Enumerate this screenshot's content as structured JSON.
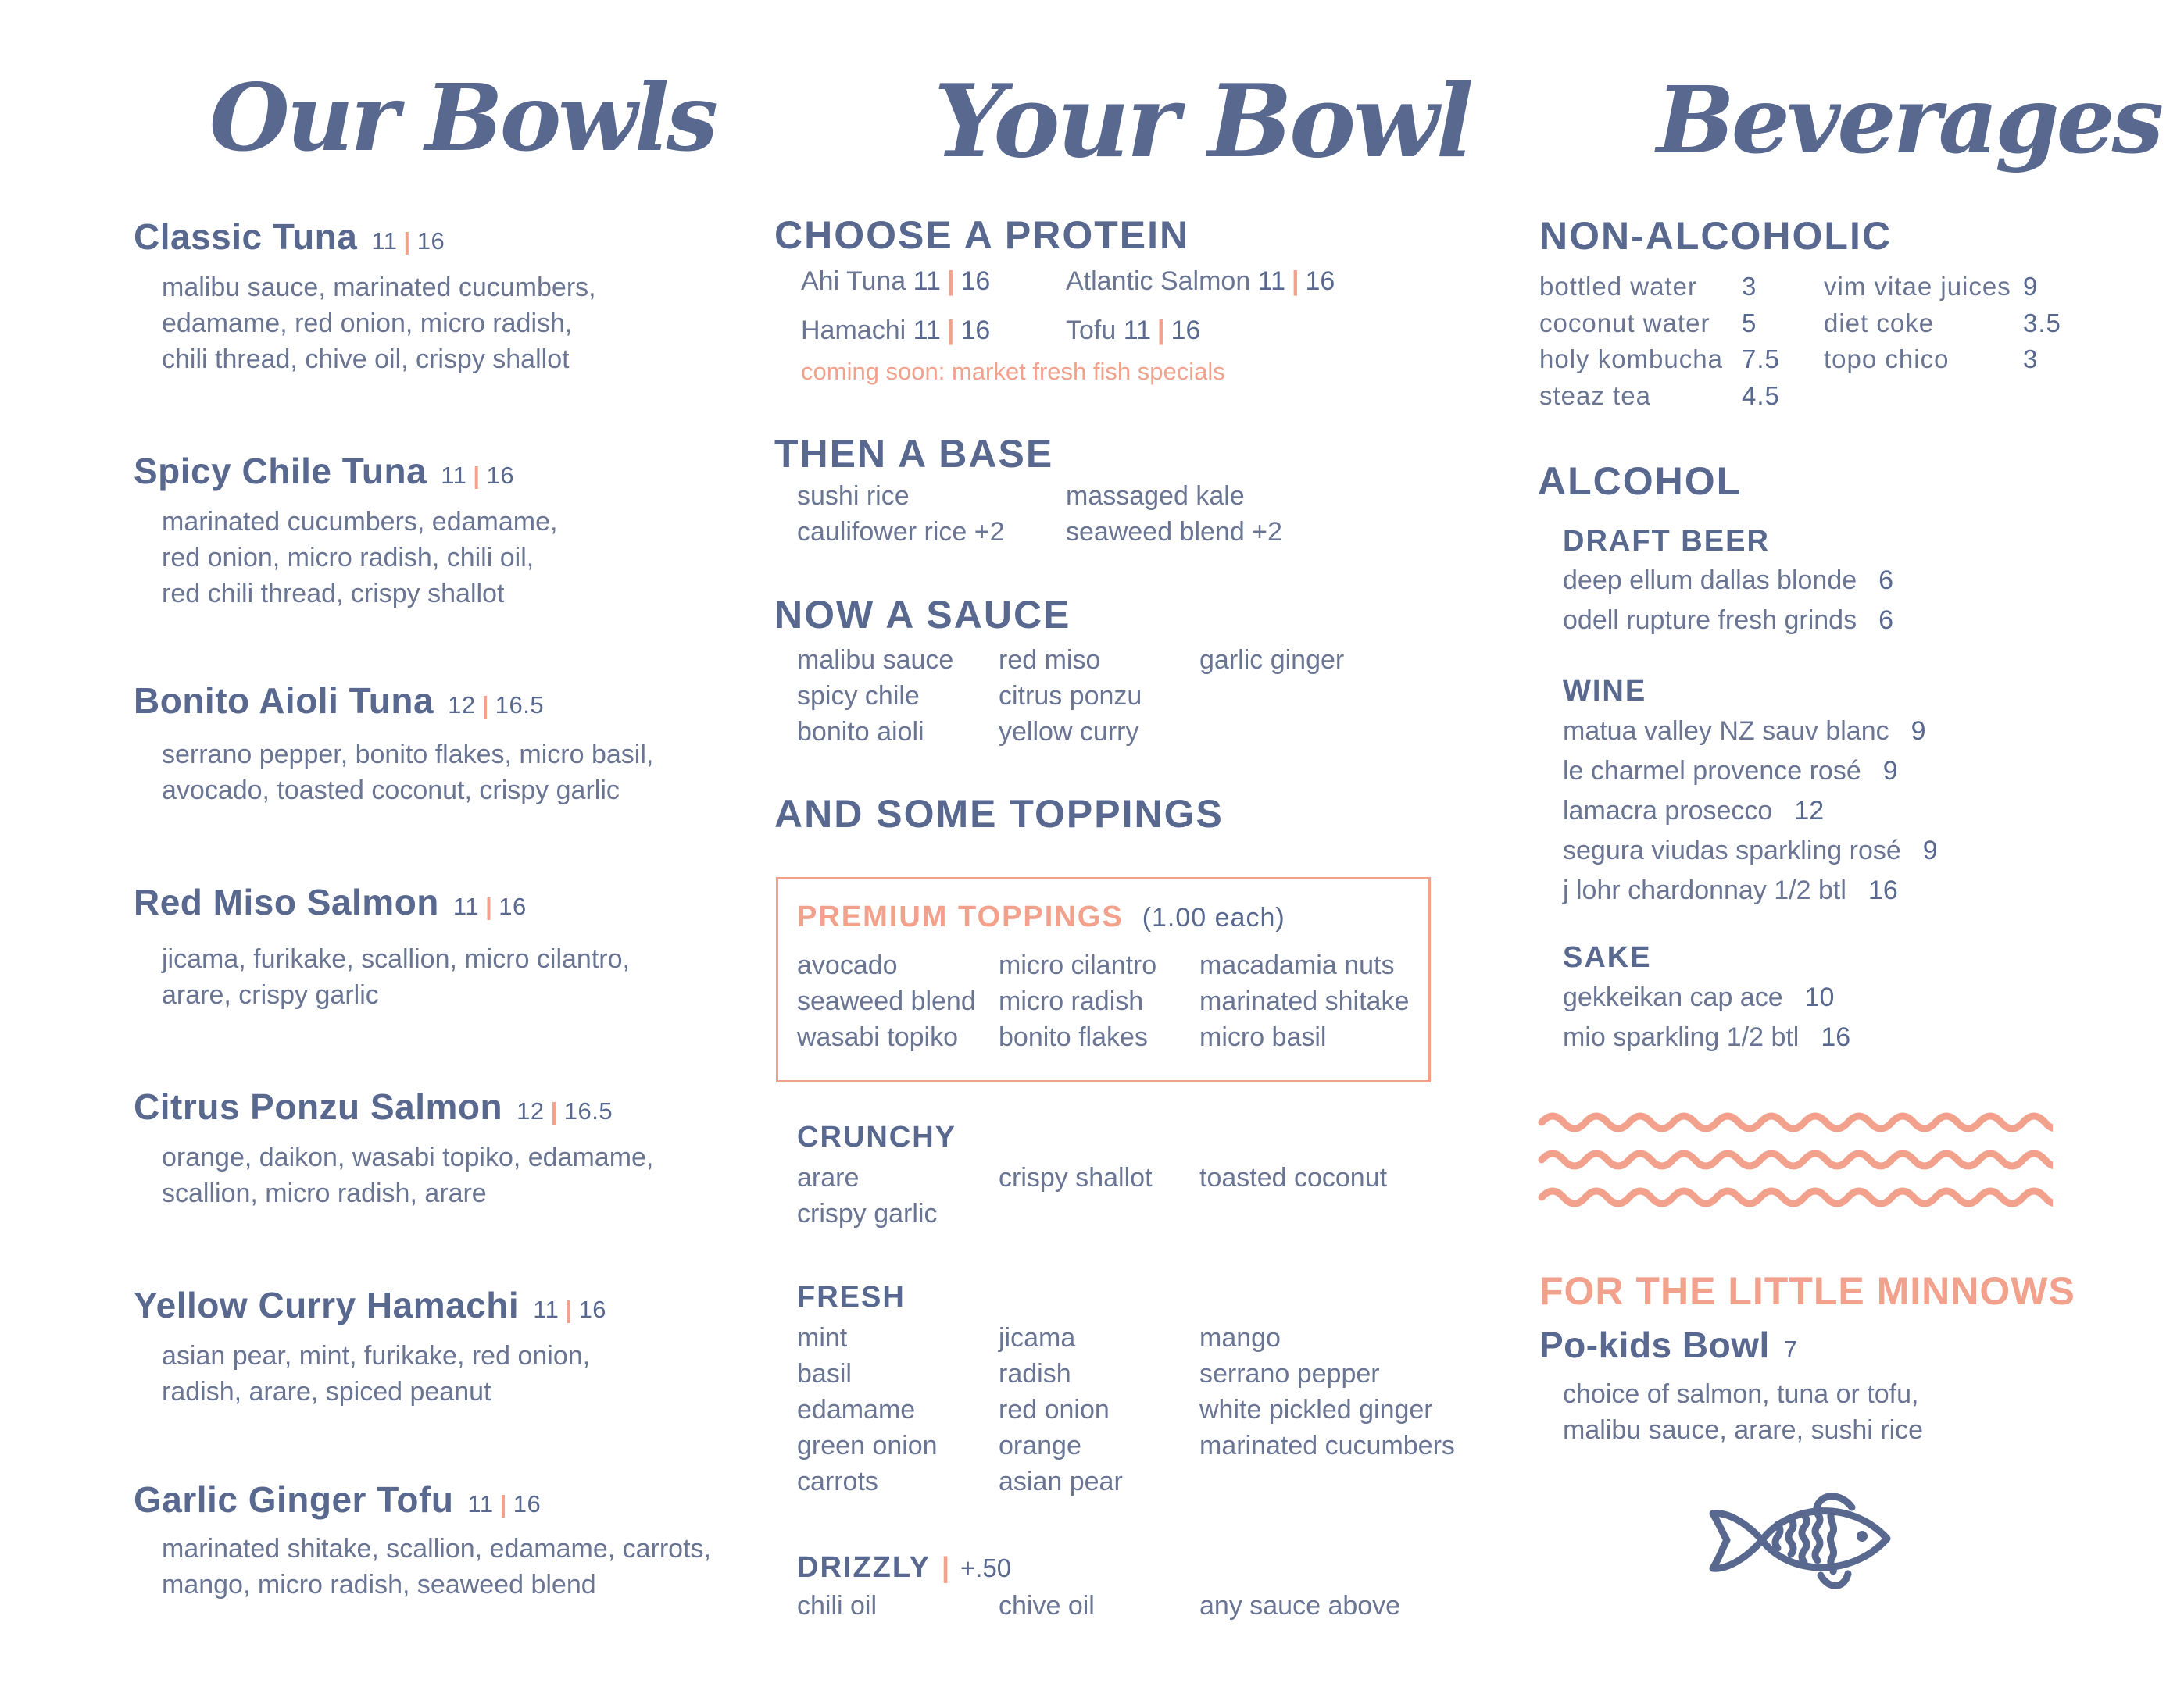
{
  "colors": {
    "primary": "#58688f",
    "accent": "#f2a28c",
    "body_text": "#6a7594"
  },
  "our_bowls": {
    "title": "Our Bowls",
    "items": [
      {
        "name": "Classic Tuna",
        "price_small": "11",
        "price_large": "16",
        "description": [
          "malibu sauce, marinated cucumbers,",
          "edamame, red onion, micro radish,",
          "chili thread, chive oil, crispy shallot"
        ]
      },
      {
        "name": "Spicy Chile Tuna",
        "price_small": "11",
        "price_large": "16",
        "description": [
          "marinated cucumbers, edamame,",
          "red onion, micro radish, chili oil,",
          "red chili thread, crispy shallot"
        ]
      },
      {
        "name": "Bonito Aioli Tuna",
        "price_small": "12",
        "price_large": "16.5",
        "description": [
          "serrano pepper, bonito flakes, micro basil,",
          "avocado, toasted coconut, crispy garlic"
        ]
      },
      {
        "name": "Red Miso Salmon",
        "price_small": "11",
        "price_large": "16",
        "description": [
          "jicama, furikake, scallion, micro cilantro,",
          "arare, crispy garlic"
        ]
      },
      {
        "name": "Citrus Ponzu Salmon",
        "price_small": "12",
        "price_large": "16.5",
        "description": [
          "orange, daikon, wasabi topiko, edamame,",
          "scallion, micro radish, arare"
        ]
      },
      {
        "name": "Yellow Curry Hamachi",
        "price_small": "11",
        "price_large": "16",
        "description": [
          "asian pear, mint, furikake, red onion,",
          "radish, arare, spiced peanut"
        ]
      },
      {
        "name": "Garlic Ginger Tofu",
        "price_small": "11",
        "price_large": "16",
        "description": [
          "marinated shitake, scallion, edamame, carrots,",
          "mango, micro radish, seaweed blend"
        ]
      }
    ]
  },
  "your_bowl": {
    "title": "Your Bowl",
    "protein": {
      "heading": "CHOOSE A PROTEIN",
      "items": [
        {
          "name": "Ahi Tuna",
          "price_small": "11",
          "price_large": "16"
        },
        {
          "name": "Atlantic Salmon",
          "price_small": "11",
          "price_large": "16"
        },
        {
          "name": "Hamachi",
          "price_small": "11",
          "price_large": "16"
        },
        {
          "name": "Tofu",
          "price_small": "11",
          "price_large": "16"
        }
      ],
      "note": "coming soon: market fresh fish specials"
    },
    "base": {
      "heading": "THEN A BASE",
      "columns": [
        [
          "sushi rice",
          "caulifower rice +2"
        ],
        [
          "massaged kale",
          "seaweed blend +2"
        ]
      ]
    },
    "sauce": {
      "heading": "NOW A SAUCE",
      "columns": [
        [
          "malibu sauce",
          "spicy chile",
          "bonito aioli"
        ],
        [
          "red miso",
          "citrus ponzu",
          "yellow curry"
        ],
        [
          "garlic ginger"
        ]
      ]
    },
    "toppings": {
      "heading": "AND SOME TOPPINGS",
      "premium": {
        "heading": "PREMIUM TOPPINGS",
        "note": "(1.00 each)",
        "columns": [
          [
            "avocado",
            "seaweed blend",
            "wasabi topiko"
          ],
          [
            "micro cilantro",
            "micro radish",
            "bonito flakes"
          ],
          [
            "macadamia nuts",
            "marinated shitake",
            "micro basil"
          ]
        ]
      },
      "crunchy": {
        "heading": "CRUNCHY",
        "columns": [
          [
            "arare",
            "crispy garlic"
          ],
          [
            "crispy shallot"
          ],
          [
            "toasted coconut"
          ]
        ]
      },
      "fresh": {
        "heading": "FRESH",
        "columns": [
          [
            "mint",
            "basil",
            "edamame",
            "green onion",
            "carrots"
          ],
          [
            "jicama",
            "radish",
            "red onion",
            "orange",
            "asian pear"
          ],
          [
            "mango",
            "serrano pepper",
            "white pickled ginger",
            "marinated cucumbers"
          ]
        ]
      },
      "drizzly": {
        "heading": "DRIZZLY",
        "price": "+.50",
        "columns": [
          [
            "chili oil"
          ],
          [
            "chive oil"
          ],
          [
            "any sauce above"
          ]
        ]
      }
    }
  },
  "beverages": {
    "title": "Beverages",
    "non_alcoholic": {
      "heading": "NON-ALCOHOLIC",
      "rows": [
        [
          {
            "name": "bottled water",
            "price": "3"
          },
          {
            "name": "vim vitae juices",
            "price": "9"
          }
        ],
        [
          {
            "name": "coconut water",
            "price": "5"
          },
          {
            "name": "diet coke",
            "price": "3.5"
          }
        ],
        [
          {
            "name": "holy kombucha",
            "price": "7.5"
          },
          {
            "name": "topo chico",
            "price": "3"
          }
        ],
        [
          {
            "name": "steaz tea",
            "price": "4.5"
          }
        ]
      ]
    },
    "alcohol": {
      "heading": "ALCOHOL",
      "draft_beer": {
        "heading": "DRAFT BEER",
        "items": [
          {
            "name": "deep ellum dallas blonde",
            "price": "6"
          },
          {
            "name": "odell rupture fresh grinds",
            "price": "6"
          }
        ]
      },
      "wine": {
        "heading": "WINE",
        "items": [
          {
            "name": "matua valley NZ sauv blanc",
            "price": "9"
          },
          {
            "name": "le charmel provence rosé",
            "price": "9"
          },
          {
            "name": "lamacra prosecco",
            "price": "12"
          },
          {
            "name": "segura viudas sparkling rosé",
            "price": "9"
          },
          {
            "name": "j lohr chardonnay 1/2 btl",
            "price": "16"
          }
        ]
      },
      "sake": {
        "heading": "SAKE",
        "items": [
          {
            "name": "gekkeikan cap ace",
            "price": "10"
          },
          {
            "name": "mio sparkling 1/2 btl",
            "price": "16"
          }
        ]
      }
    },
    "kids": {
      "heading": "FOR THE LITTLE MINNOWS",
      "name": "Po-kids Bowl",
      "price": "7",
      "description": [
        "choice of salmon, tuna or tofu,",
        "malibu sauce, arare, sushi rice"
      ]
    }
  },
  "icons": {
    "waves": "waves-decoration",
    "fish": "fish-icon"
  }
}
